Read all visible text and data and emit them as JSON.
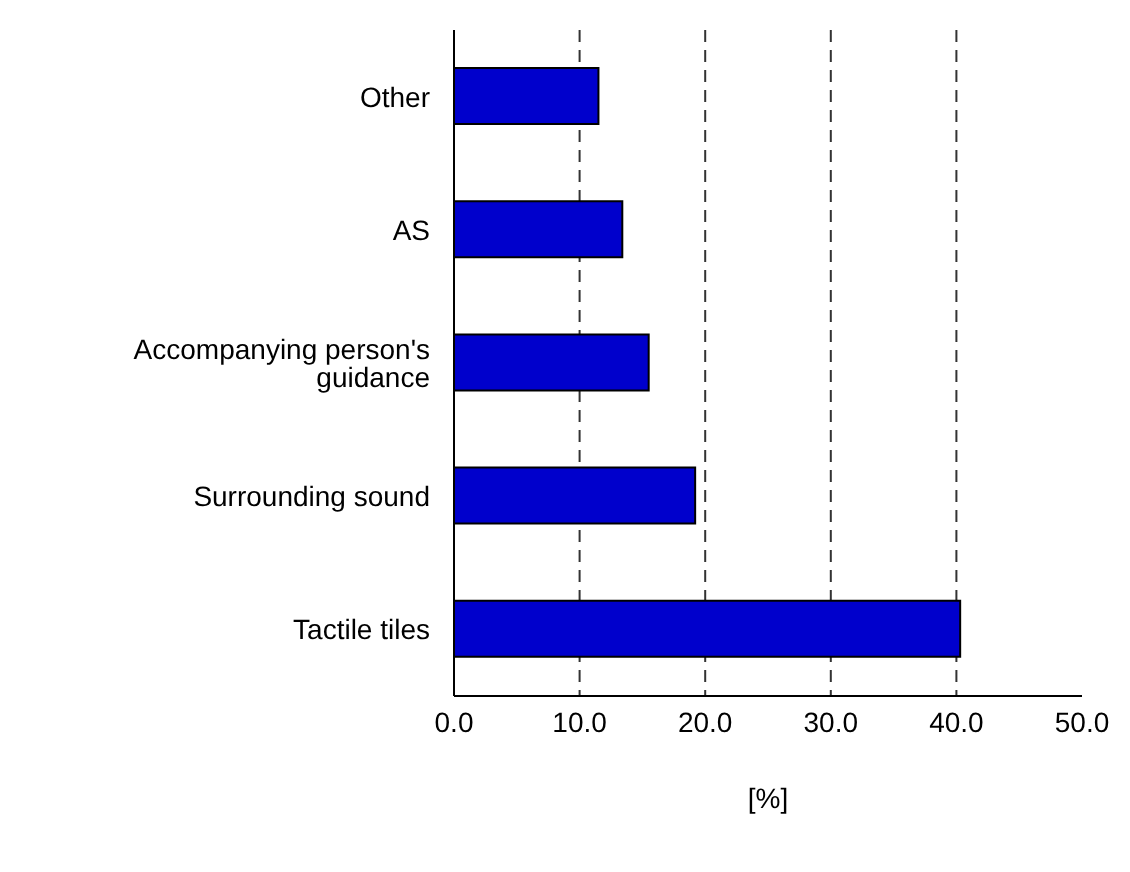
{
  "chart_data": {
    "type": "bar",
    "orientation": "horizontal",
    "categories": [
      "Other",
      "AS",
      "Accompanying person's guidance",
      "Surrounding sound",
      "Tactile tiles"
    ],
    "values": [
      11.5,
      13.4,
      15.5,
      19.2,
      40.3
    ],
    "color": "#0000cc",
    "xlim": [
      0,
      50
    ],
    "xticks": [
      {
        "value": 0,
        "label": "0.0"
      },
      {
        "value": 10,
        "label": "10.0"
      },
      {
        "value": 20,
        "label": "20.0"
      },
      {
        "value": 30,
        "label": "30.0"
      },
      {
        "value": 40,
        "label": "40.0"
      },
      {
        "value": 50,
        "label": "50.0"
      }
    ],
    "xlabel": "[%]",
    "grid": "x"
  }
}
